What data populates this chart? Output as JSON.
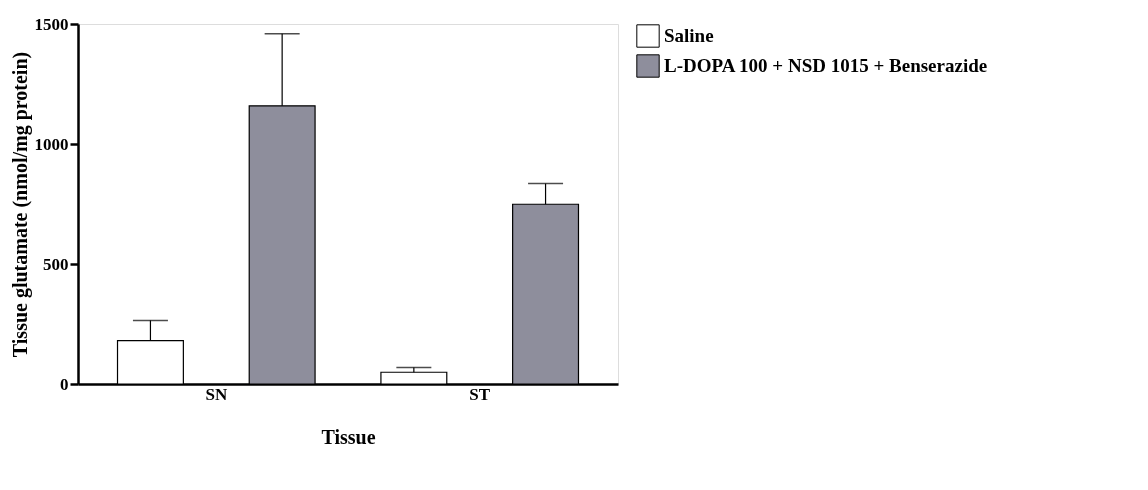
{
  "chart_data": {
    "type": "bar",
    "xlabel": "Tissue",
    "ylabel": "Tissue glutamate (nmol/mg protein)",
    "categories": [
      "SN",
      "ST"
    ],
    "series": [
      {
        "name": "Saline",
        "color": "#ffffff",
        "values": [
          181,
          49
        ],
        "errors": [
          [
            181,
            265
          ],
          [
            49,
            69
          ]
        ]
      },
      {
        "name": "L-DOPA 100 + NSD 1015 + Benserazide",
        "color": "#8e8e9c",
        "values": [
          1159,
          749
        ],
        "errors": [
          [
            1159,
            1459
          ],
          [
            749,
            835
          ]
        ]
      }
    ],
    "ylim": [
      0,
      1500
    ],
    "yticks": [
      0,
      500,
      1000,
      1500
    ],
    "grid": false,
    "legend": "top right"
  }
}
